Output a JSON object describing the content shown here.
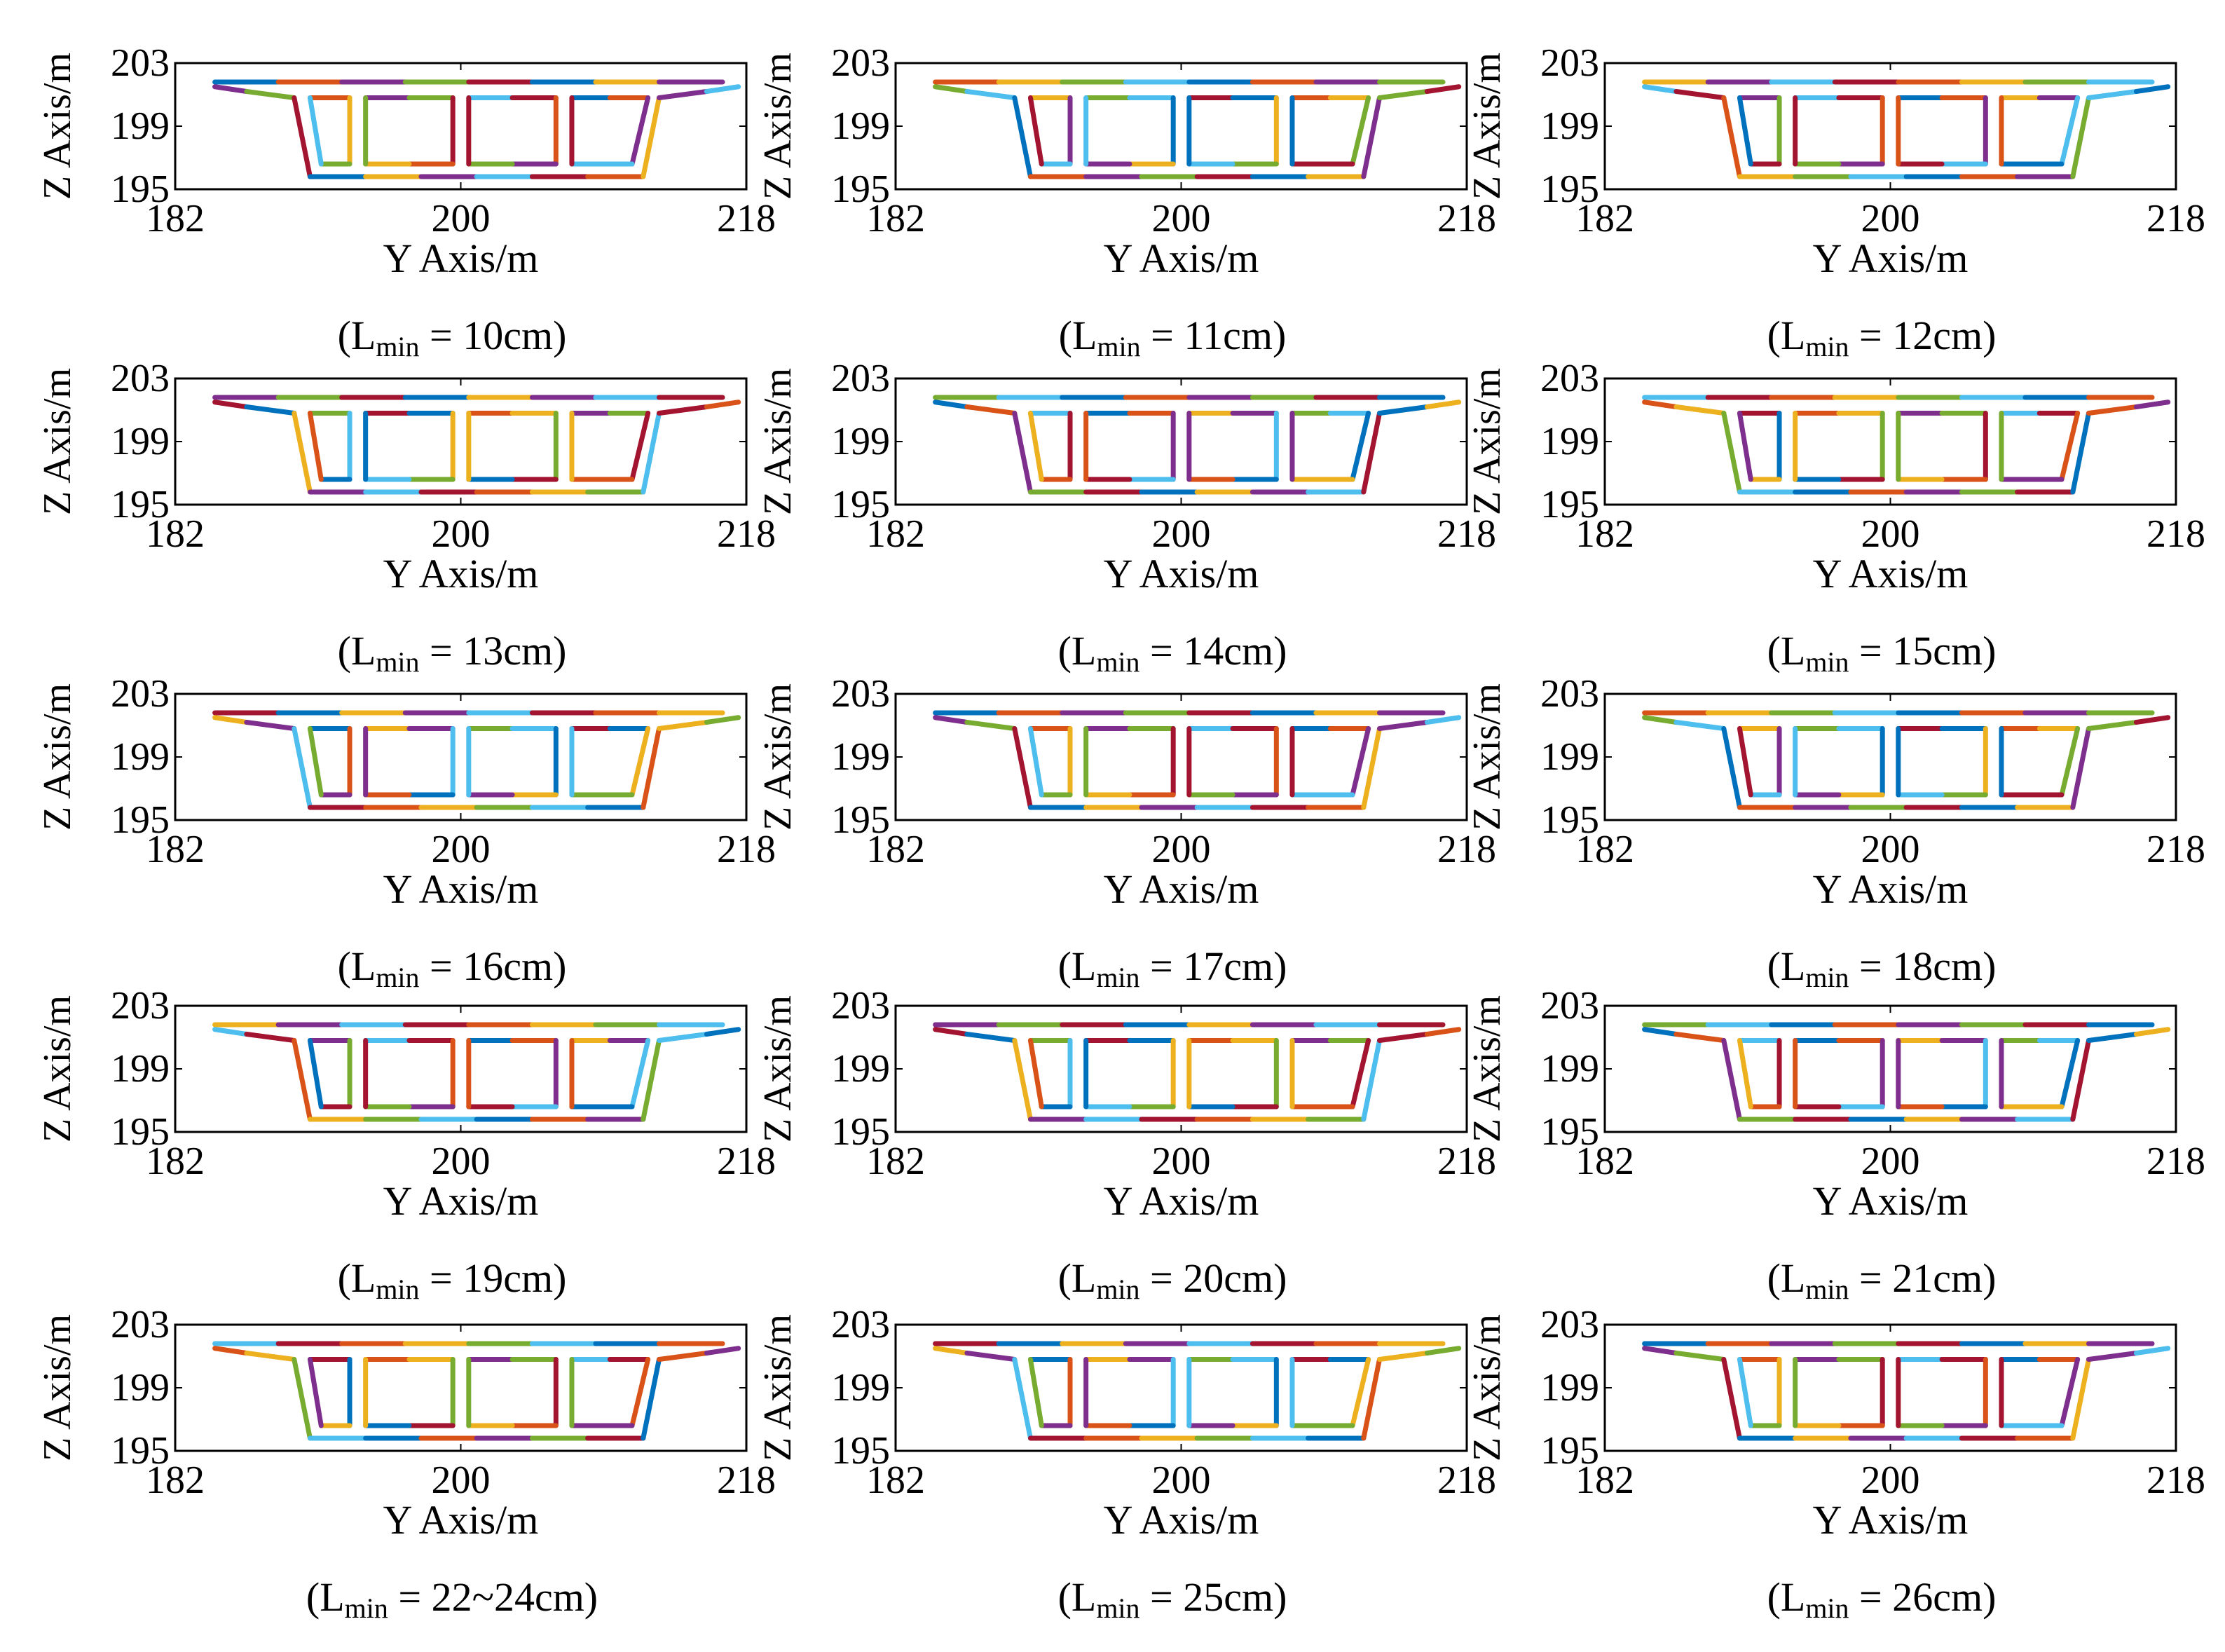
{
  "figure": {
    "xlabel": "Y Axis/m",
    "ylabel": "Z Axis/m",
    "xticks": [
      "182",
      "200",
      "218"
    ],
    "yticks": [
      "203",
      "199",
      "195"
    ],
    "caption_prefix": "(L",
    "caption_sub": "min",
    "caption_eq": " = "
  },
  "chart_data": [
    {
      "type": "line",
      "title": "",
      "values_label": "10cm",
      "xlabel": "Y Axis/m",
      "ylabel": "Z Axis/m",
      "xlim": [
        182,
        218
      ],
      "ylim": [
        195,
        203
      ],
      "palette_offset": 0
    },
    {
      "type": "line",
      "title": "",
      "values_label": "11cm",
      "xlabel": "Y Axis/m",
      "ylabel": "Z Axis/m",
      "xlim": [
        182,
        218
      ],
      "ylim": [
        195,
        203
      ],
      "palette_offset": 1
    },
    {
      "type": "line",
      "title": "",
      "values_label": "12cm",
      "xlabel": "Y Axis/m",
      "ylabel": "Z Axis/m",
      "xlim": [
        182,
        218
      ],
      "ylim": [
        195,
        203
      ],
      "palette_offset": 2
    },
    {
      "type": "line",
      "title": "",
      "values_label": "13cm",
      "xlabel": "Y Axis/m",
      "ylabel": "Z Axis/m",
      "xlim": [
        182,
        218
      ],
      "ylim": [
        195,
        203
      ],
      "palette_offset": 3
    },
    {
      "type": "line",
      "title": "",
      "values_label": "14cm",
      "xlabel": "Y Axis/m",
      "ylabel": "Z Axis/m",
      "xlim": [
        182,
        218
      ],
      "ylim": [
        195,
        203
      ],
      "palette_offset": 4
    },
    {
      "type": "line",
      "title": "",
      "values_label": "15cm",
      "xlabel": "Y Axis/m",
      "ylabel": "Z Axis/m",
      "xlim": [
        182,
        218
      ],
      "ylim": [
        195,
        203
      ],
      "palette_offset": 5
    },
    {
      "type": "line",
      "title": "",
      "values_label": "16cm",
      "xlabel": "Y Axis/m",
      "ylabel": "Z Axis/m",
      "xlim": [
        182,
        218
      ],
      "ylim": [
        195,
        203
      ],
      "palette_offset": 6
    },
    {
      "type": "line",
      "title": "",
      "values_label": "17cm",
      "xlabel": "Y Axis/m",
      "ylabel": "Z Axis/m",
      "xlim": [
        182,
        218
      ],
      "ylim": [
        195,
        203
      ],
      "palette_offset": 0
    },
    {
      "type": "line",
      "title": "",
      "values_label": "18cm",
      "xlabel": "Y Axis/m",
      "ylabel": "Z Axis/m",
      "xlim": [
        182,
        218
      ],
      "ylim": [
        195,
        203
      ],
      "palette_offset": 1
    },
    {
      "type": "line",
      "title": "",
      "values_label": "19cm",
      "xlabel": "Y Axis/m",
      "ylabel": "Z Axis/m",
      "xlim": [
        182,
        218
      ],
      "ylim": [
        195,
        203
      ],
      "palette_offset": 2
    },
    {
      "type": "line",
      "title": "",
      "values_label": "20cm",
      "xlabel": "Y Axis/m",
      "ylabel": "Z Axis/m",
      "xlim": [
        182,
        218
      ],
      "ylim": [
        195,
        203
      ],
      "palette_offset": 3
    },
    {
      "type": "line",
      "title": "",
      "values_label": "21cm",
      "xlabel": "Y Axis/m",
      "ylabel": "Z Axis/m",
      "xlim": [
        182,
        218
      ],
      "ylim": [
        195,
        203
      ],
      "palette_offset": 4
    },
    {
      "type": "line",
      "title": "",
      "values_label": "22~24cm",
      "xlabel": "Y Axis/m",
      "ylabel": "Z Axis/m",
      "xlim": [
        182,
        218
      ],
      "ylim": [
        195,
        203
      ],
      "palette_offset": 5
    },
    {
      "type": "line",
      "title": "",
      "values_label": "25cm",
      "xlabel": "Y Axis/m",
      "ylabel": "Z Axis/m",
      "xlim": [
        182,
        218
      ],
      "ylim": [
        195,
        203
      ],
      "palette_offset": 6
    },
    {
      "type": "line",
      "title": "",
      "values_label": "26cm",
      "xlabel": "Y Axis/m",
      "ylabel": "Z Axis/m",
      "xlim": [
        182,
        218
      ],
      "ylim": [
        195,
        203
      ],
      "palette_offset": 0
    }
  ],
  "cross_section": {
    "deck": [
      [
        184.5,
        201.8
      ],
      [
        216.5,
        201.8
      ]
    ],
    "outline": [
      [
        184.5,
        201.5
      ],
      [
        186.5,
        201.2
      ],
      [
        189.5,
        200.8
      ],
      [
        190.5,
        195.8
      ],
      [
        211.5,
        195.8
      ],
      [
        212.5,
        200.8
      ],
      [
        215.5,
        201.2
      ],
      [
        217.5,
        201.5
      ]
    ],
    "cells": [
      [
        [
          190.5,
          200.8
        ],
        [
          193.0,
          200.8
        ],
        [
          193.0,
          196.6
        ],
        [
          191.2,
          196.6
        ]
      ],
      [
        [
          194.0,
          200.8
        ],
        [
          199.5,
          200.8
        ],
        [
          199.5,
          196.6
        ],
        [
          194.0,
          196.6
        ]
      ],
      [
        [
          200.5,
          200.8
        ],
        [
          206.0,
          200.8
        ],
        [
          206.0,
          196.6
        ],
        [
          200.5,
          196.6
        ]
      ],
      [
        [
          207.0,
          200.8
        ],
        [
          211.8,
          200.8
        ],
        [
          210.8,
          196.6
        ],
        [
          207.0,
          196.6
        ]
      ]
    ]
  },
  "palette": [
    "#0072BD",
    "#D95319",
    "#EDB120",
    "#7E2F8E",
    "#77AC30",
    "#4DBEEE",
    "#A2142F"
  ]
}
